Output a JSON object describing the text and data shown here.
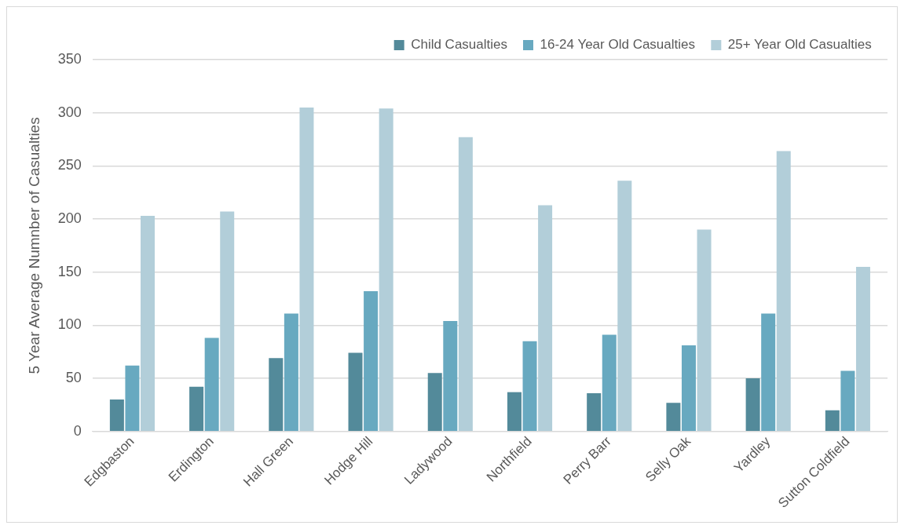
{
  "chart_data": {
    "type": "bar",
    "ylabel": "5 Year Average Numnber of Casualties",
    "categories": [
      "Edgbaston",
      "Erdington",
      "Hall Green",
      "Hodge Hill",
      "Ladywood",
      "Northfield",
      "Perry Barr",
      "Selly Oak",
      "Yardley",
      "Sutton Coldfield"
    ],
    "series": [
      {
        "name": "Child Casualties",
        "color": "#538a9a",
        "values": [
          30,
          42,
          69,
          74,
          55,
          37,
          36,
          27,
          50,
          20
        ]
      },
      {
        "name": "16-24 Year Old Casualties",
        "color": "#68a9c0",
        "values": [
          62,
          88,
          111,
          132,
          104,
          85,
          91,
          81,
          111,
          57
        ]
      },
      {
        "name": "25+ Year Old Casualties",
        "color": "#b2ced9",
        "values": [
          203,
          207,
          305,
          304,
          277,
          213,
          236,
          190,
          264,
          155
        ]
      }
    ],
    "ylim": [
      0,
      350
    ],
    "yticks": [
      0,
      50,
      100,
      150,
      200,
      250,
      300,
      350
    ],
    "grid": "y",
    "legend": "top right"
  }
}
